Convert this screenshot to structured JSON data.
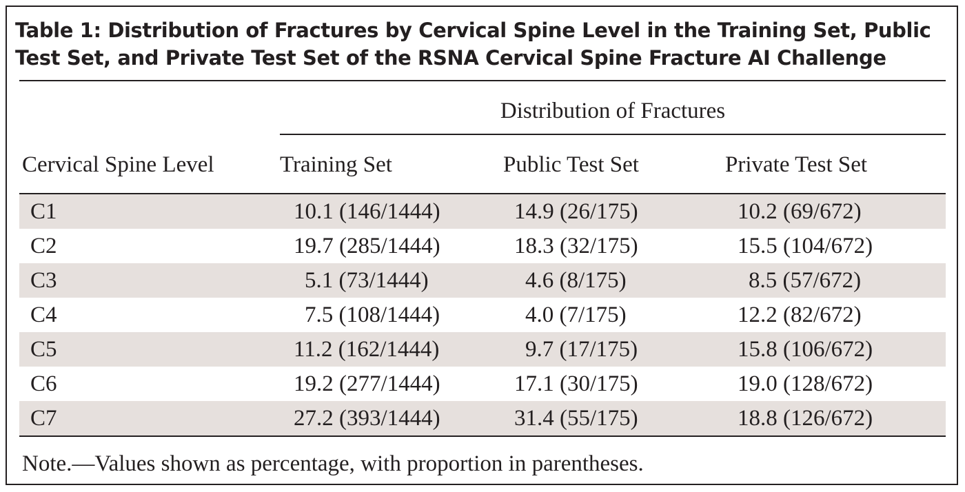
{
  "table": {
    "title": "Table 1: Distribution of Fractures by Cervical Spine Level in the Training Set, Public Test Set, and Private Test Set of the RSNA Cervical Spine Fracture AI Challenge",
    "spanner_header": "Distribution of Fractures",
    "columns": {
      "level": "Cervical Spine Level",
      "training": "Training Set",
      "public": "Public Test Set",
      "private": "Private Test Set"
    },
    "rows": [
      {
        "level": "C1",
        "training": "10.1 (146/1444)",
        "public": "14.9 (26/175)",
        "private": "10.2 (69/672)"
      },
      {
        "level": "C2",
        "training": "19.7 (285/1444)",
        "public": "18.3 (32/175)",
        "private": "15.5 (104/672)"
      },
      {
        "level": "C3",
        "training": "5.1 (73/1444)",
        "public": "4.6 (8/175)",
        "private": "8.5 (57/672)"
      },
      {
        "level": "C4",
        "training": "7.5 (108/1444)",
        "public": "4.0 (7/175)",
        "private": "12.2 (82/672)"
      },
      {
        "level": "C5",
        "training": "11.2 (162/1444)",
        "public": "9.7 (17/175)",
        "private": "15.8 (106/672)"
      },
      {
        "level": "C6",
        "training": "19.2 (277/1444)",
        "public": "17.1 (30/175)",
        "private": "19.0 (128/672)"
      },
      {
        "level": "C7",
        "training": "27.2 (393/1444)",
        "public": "31.4 (55/175)",
        "private": "18.8 (126/672)"
      }
    ],
    "note": "Note.—Values shown as percentage, with proportion in parentheses."
  },
  "colors": {
    "text": "#231f20",
    "row_shade": "#e6e0dd",
    "background": "#ffffff"
  }
}
